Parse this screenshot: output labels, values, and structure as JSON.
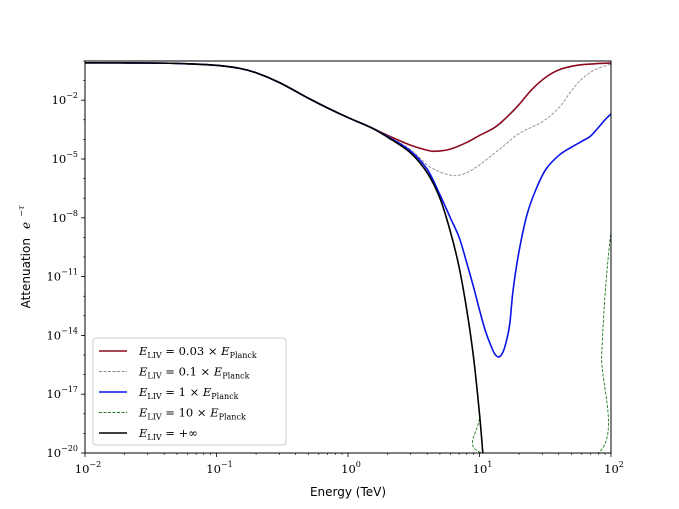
{
  "chart_data": {
    "type": "line",
    "xlabel": "Energy (TeV)",
    "ylabel_text": "Attenuation",
    "ylabel_math": "e",
    "ylabel_exp": "−τ",
    "x_scale": "log",
    "y_scale": "log",
    "xlim": [
      0.01,
      100
    ],
    "ylim": [
      1e-20,
      1
    ],
    "x_ticks": [
      {
        "value": 0.01,
        "base": "10",
        "exp": "−2"
      },
      {
        "value": 0.1,
        "base": "10",
        "exp": "−1"
      },
      {
        "value": 1,
        "base": "10",
        "exp": "0"
      },
      {
        "value": 10,
        "base": "10",
        "exp": "1"
      },
      {
        "value": 100,
        "base": "10",
        "exp": "2"
      }
    ],
    "y_ticks": [
      {
        "value": 0.01,
        "base": "10",
        "exp": "−2"
      },
      {
        "value": 1e-05,
        "base": "10",
        "exp": "−5"
      },
      {
        "value": 1e-08,
        "base": "10",
        "exp": "−8"
      },
      {
        "value": 1e-11,
        "base": "10",
        "exp": "−11"
      },
      {
        "value": 1e-14,
        "base": "10",
        "exp": "−14"
      },
      {
        "value": 1e-17,
        "base": "10",
        "exp": "−17"
      },
      {
        "value": 1e-20,
        "base": "10",
        "exp": "−20"
      }
    ],
    "legend_position": "lower-left",
    "series": [
      {
        "name": "E_LIV = 0.03 × E_Planck",
        "label_main": "E",
        "label_sub": "LIV",
        "label_rest": " = 0.03 × ",
        "label_main2": "E",
        "label_sub2": "Planck",
        "color": "#8b0a1e",
        "dash": "solid",
        "points": [
          [
            0.01,
            0.81
          ],
          [
            0.03,
            0.79
          ],
          [
            0.06,
            0.72
          ],
          [
            0.1,
            0.6
          ],
          [
            0.15,
            0.42
          ],
          [
            0.2,
            0.25
          ],
          [
            0.3,
            0.08
          ],
          [
            0.5,
            0.0126
          ],
          [
            0.7,
            0.004
          ],
          [
            1,
            0.0013
          ],
          [
            1.5,
            0.0004
          ],
          [
            2,
            0.00016
          ],
          [
            3,
            5e-05
          ],
          [
            4,
            2.8e-05
          ],
          [
            4.7,
            2.5e-05
          ],
          [
            6,
            3.2e-05
          ],
          [
            8,
            7e-05
          ],
          [
            10,
            0.00016
          ],
          [
            13,
            0.0004
          ],
          [
            16,
            0.0013
          ],
          [
            20,
            0.006
          ],
          [
            25,
            0.035
          ],
          [
            32,
            0.15
          ],
          [
            40,
            0.35
          ],
          [
            55,
            0.6
          ],
          [
            75,
            0.72
          ],
          [
            100,
            0.78
          ]
        ]
      },
      {
        "name": "E_LIV = 0.1 × E_Planck",
        "label_main": "E",
        "label_sub": "LIV",
        "label_rest": " = 0.1 × ",
        "label_main2": "E",
        "label_sub2": "Planck",
        "color": "#8c8c8c",
        "dash": "dashed",
        "points": [
          [
            0.01,
            0.81
          ],
          [
            0.03,
            0.79
          ],
          [
            0.06,
            0.72
          ],
          [
            0.1,
            0.6
          ],
          [
            0.15,
            0.42
          ],
          [
            0.2,
            0.25
          ],
          [
            0.3,
            0.08
          ],
          [
            0.5,
            0.0126
          ],
          [
            0.7,
            0.004
          ],
          [
            1,
            0.0013
          ],
          [
            1.5,
            0.0004
          ],
          [
            2,
            0.00015
          ],
          [
            3,
            3e-05
          ],
          [
            4,
            5e-06
          ],
          [
            5,
            2.2e-06
          ],
          [
            6,
            1.5e-06
          ],
          [
            6.8,
            1.45e-06
          ],
          [
            8,
            2e-06
          ],
          [
            10,
            5e-06
          ],
          [
            13,
            2e-05
          ],
          [
            16,
            6e-05
          ],
          [
            20,
            0.0002
          ],
          [
            30,
            0.0008
          ],
          [
            40,
            0.004
          ],
          [
            50,
            0.03
          ],
          [
            60,
            0.12
          ],
          [
            75,
            0.35
          ],
          [
            100,
            0.7
          ]
        ]
      },
      {
        "name": "E_LIV = 1 × E_Planck",
        "label_main": "E",
        "label_sub": "LIV",
        "label_rest": " = 1 × ",
        "label_main2": "E",
        "label_sub2": "Planck",
        "color": "#0a14e6",
        "dash": "solid",
        "points": [
          [
            0.01,
            0.81
          ],
          [
            0.03,
            0.79
          ],
          [
            0.06,
            0.72
          ],
          [
            0.1,
            0.6
          ],
          [
            0.15,
            0.42
          ],
          [
            0.2,
            0.25
          ],
          [
            0.3,
            0.08
          ],
          [
            0.5,
            0.0126
          ],
          [
            0.7,
            0.004
          ],
          [
            1,
            0.0013
          ],
          [
            1.5,
            0.0004
          ],
          [
            2,
            0.00014
          ],
          [
            3,
            2.5e-05
          ],
          [
            4,
            3e-06
          ],
          [
            5,
            1.5e-07
          ],
          [
            6,
            1e-08
          ],
          [
            7,
            1e-09
          ],
          [
            8,
            5e-11
          ],
          [
            9,
            3e-12
          ],
          [
            10,
            2e-13
          ],
          [
            11,
            2e-14
          ],
          [
            12,
            4e-15
          ],
          [
            13,
            1.2e-15
          ],
          [
            14,
            8e-16
          ],
          [
            15,
            1.3e-15
          ],
          [
            16,
            5e-15
          ],
          [
            17,
            4e-14
          ],
          [
            18,
            2e-12
          ],
          [
            20,
            2e-10
          ],
          [
            23,
            1.5e-08
          ],
          [
            27,
            3e-07
          ],
          [
            32,
            3e-06
          ],
          [
            40,
            1.5e-05
          ],
          [
            50,
            4e-05
          ],
          [
            60,
            8e-05
          ],
          [
            70,
            0.00015
          ],
          [
            80,
            0.0004
          ],
          [
            90,
            0.001
          ],
          [
            100,
            0.002
          ]
        ]
      },
      {
        "name": "E_LIV = 10 × E_Planck",
        "label_main": "E",
        "label_sub": "LIV",
        "label_rest": " = 10 × ",
        "label_main2": "E",
        "label_sub2": "Planck",
        "color": "#1e7a1e",
        "dash": "dashed",
        "points": [
          [
            0.01,
            0.81
          ],
          [
            0.03,
            0.79
          ],
          [
            0.06,
            0.72
          ],
          [
            0.1,
            0.6
          ],
          [
            0.15,
            0.42
          ],
          [
            0.2,
            0.25
          ],
          [
            0.3,
            0.08
          ],
          [
            0.5,
            0.0126
          ],
          [
            0.7,
            0.004
          ],
          [
            1,
            0.0013
          ],
          [
            1.5,
            0.0004
          ],
          [
            2,
            0.00013
          ],
          [
            3,
            2e-05
          ],
          [
            4,
            2e-06
          ],
          [
            5,
            1e-07
          ],
          [
            6,
            2e-09
          ],
          [
            7,
            3e-11
          ],
          [
            8,
            2e-13
          ],
          [
            9,
            8e-16
          ],
          [
            10,
            1e-18
          ],
          [
            10.5,
            1e-20
          ],
          [
            80,
            1e-20
          ],
          [
            85,
            1e-15
          ],
          [
            90,
            1e-12
          ],
          [
            95,
            8e-11
          ],
          [
            100,
            2e-09
          ]
        ]
      },
      {
        "name": "E_LIV = +∞",
        "label_main": "E",
        "label_sub": "LIV",
        "label_rest": " = +∞",
        "label_main2": "",
        "label_sub2": "",
        "color": "#000000",
        "dash": "solid",
        "points": [
          [
            0.01,
            0.81
          ],
          [
            0.03,
            0.79
          ],
          [
            0.06,
            0.72
          ],
          [
            0.1,
            0.6
          ],
          [
            0.15,
            0.42
          ],
          [
            0.2,
            0.25
          ],
          [
            0.3,
            0.08
          ],
          [
            0.5,
            0.0126
          ],
          [
            0.7,
            0.004
          ],
          [
            1,
            0.0013
          ],
          [
            1.5,
            0.0004
          ],
          [
            2,
            0.00013
          ],
          [
            3,
            2e-05
          ],
          [
            4,
            2e-06
          ],
          [
            5,
            1e-07
          ],
          [
            6,
            2e-09
          ],
          [
            7,
            3e-11
          ],
          [
            8,
            2e-13
          ],
          [
            9,
            8e-16
          ],
          [
            10,
            1e-18
          ],
          [
            10.6,
            1e-20
          ]
        ]
      }
    ]
  }
}
